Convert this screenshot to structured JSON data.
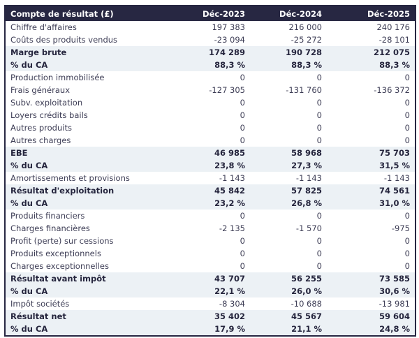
{
  "chart_data": {
    "type": "table",
    "title": "Compte de résultat (£)",
    "columns": [
      "Compte de résultat (£)",
      "Déc-2023",
      "Déc-2024",
      "Déc-2025"
    ],
    "rows": [
      {
        "label": "Chiffre d'affaires",
        "values": [
          "197 383",
          "216 000",
          "240 176"
        ],
        "style": "normal"
      },
      {
        "label": "Coûts des produits vendus",
        "values": [
          "-23 094",
          "-25 272",
          "-28 101"
        ],
        "style": "normal"
      },
      {
        "label": "Marge brute",
        "values": [
          "174 289",
          "190 728",
          "212 075"
        ],
        "style": "subtotal"
      },
      {
        "label": "% du CA",
        "values": [
          "88,3 %",
          "88,3 %",
          "88,3 %"
        ],
        "style": "subtotal"
      },
      {
        "label": "Production immobilisée",
        "values": [
          "0",
          "0",
          "0"
        ],
        "style": "normal"
      },
      {
        "label": "Frais généraux",
        "values": [
          "-127 305",
          "-131 760",
          "-136 372"
        ],
        "style": "normal"
      },
      {
        "label": "Subv. exploitation",
        "values": [
          "0",
          "0",
          "0"
        ],
        "style": "normal"
      },
      {
        "label": "Loyers crédits bails",
        "values": [
          "0",
          "0",
          "0"
        ],
        "style": "normal"
      },
      {
        "label": "Autres produits",
        "values": [
          "0",
          "0",
          "0"
        ],
        "style": "normal"
      },
      {
        "label": "Autres charges",
        "values": [
          "0",
          "0",
          "0"
        ],
        "style": "normal"
      },
      {
        "label": "EBE",
        "values": [
          "46 985",
          "58 968",
          "75 703"
        ],
        "style": "subtotal"
      },
      {
        "label": "% du CA",
        "values": [
          "23,8 %",
          "27,3 %",
          "31,5 %"
        ],
        "style": "subtotal"
      },
      {
        "label": "Amortissements et provisions",
        "values": [
          "-1 143",
          "-1 143",
          "-1 143"
        ],
        "style": "normal"
      },
      {
        "label": "Résultat d'exploitation",
        "values": [
          "45 842",
          "57 825",
          "74 561"
        ],
        "style": "subtotal"
      },
      {
        "label": "% du CA",
        "values": [
          "23,2 %",
          "26,8 %",
          "31,0 %"
        ],
        "style": "subtotal"
      },
      {
        "label": "Produits financiers",
        "values": [
          "0",
          "0",
          "0"
        ],
        "style": "normal"
      },
      {
        "label": "Charges financières",
        "values": [
          "-2 135",
          "-1 570",
          "-975"
        ],
        "style": "normal"
      },
      {
        "label": "Profit (perte) sur cessions",
        "values": [
          "0",
          "0",
          "0"
        ],
        "style": "normal"
      },
      {
        "label": "Produits exceptionnels",
        "values": [
          "0",
          "0",
          "0"
        ],
        "style": "normal"
      },
      {
        "label": "Charges exceptionnelles",
        "values": [
          "0",
          "0",
          "0"
        ],
        "style": "normal"
      },
      {
        "label": "Résultat avant impôt",
        "values": [
          "43 707",
          "56 255",
          "73 585"
        ],
        "style": "subtotal"
      },
      {
        "label": "% du CA",
        "values": [
          "22,1 %",
          "26,0 %",
          "30,6 %"
        ],
        "style": "subtotal"
      },
      {
        "label": "Impôt sociétés",
        "values": [
          "-8 304",
          "-10 688",
          "-13 981"
        ],
        "style": "normal"
      },
      {
        "label": "Résultat net",
        "values": [
          "35 402",
          "45 567",
          "59 604"
        ],
        "style": "subtotal"
      },
      {
        "label": "% du CA",
        "values": [
          "17,9 %",
          "21,1 %",
          "24,8 %"
        ],
        "style": "subtotal"
      }
    ],
    "layout": {
      "grid": false,
      "label_column_align": "left",
      "value_columns_align": "right"
    },
    "colors": {
      "header_background": "#272742",
      "header_text": "#ffffff",
      "subtotal_row_background": "#ecf1f5",
      "normal_row_background": "#ffffff",
      "body_text": "#3d3d55",
      "subtotal_text": "#26263e",
      "outer_border": "#272742"
    }
  }
}
